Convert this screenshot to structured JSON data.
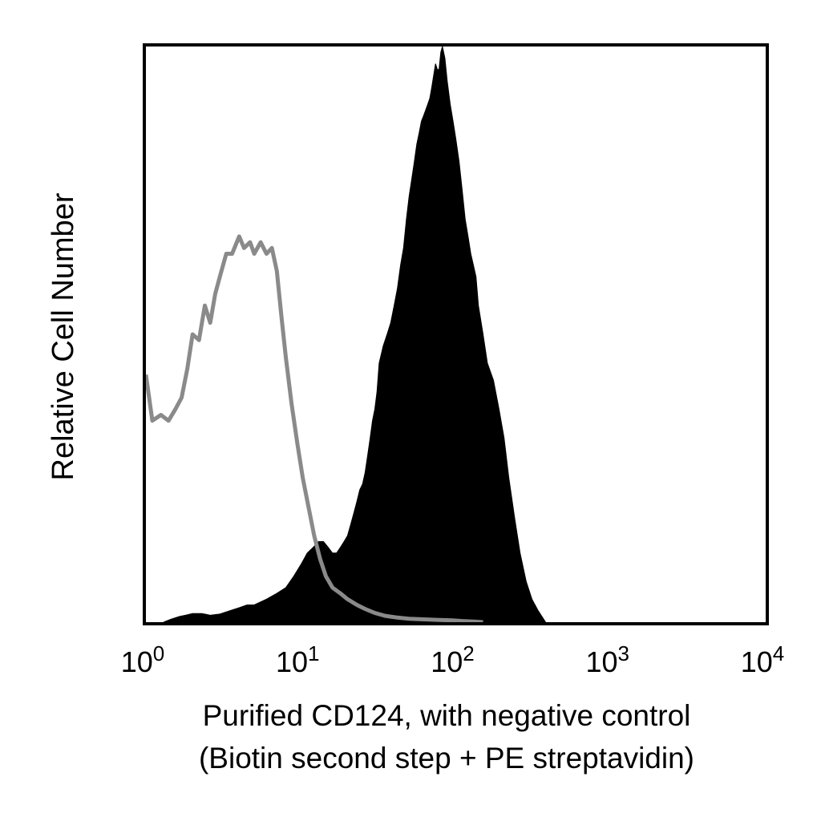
{
  "chart_data": {
    "type": "area",
    "title": "",
    "ylabel": "Relative Cell Number",
    "xlabel_lines": [
      "Purified CD124, with negative control",
      "(Biotin second step + PE streptavidin)"
    ],
    "x_scale": "log",
    "xlim": [
      1,
      10000
    ],
    "ylim": [
      0,
      100
    ],
    "x_ticks": [
      {
        "base": "10",
        "exp": "0",
        "value": 1
      },
      {
        "base": "10",
        "exp": "1",
        "value": 10
      },
      {
        "base": "10",
        "exp": "2",
        "value": 100
      },
      {
        "base": "10",
        "exp": "3",
        "value": 1000
      },
      {
        "base": "10",
        "exp": "4",
        "value": 10000
      }
    ],
    "grid": false,
    "legend": "none",
    "series": [
      {
        "style": "open-outline",
        "color": "#8a8a8a",
        "x": [
          1.0,
          1.1,
          1.25,
          1.4,
          1.55,
          1.7,
          1.85,
          2.0,
          2.2,
          2.4,
          2.6,
          2.8,
          3.0,
          3.3,
          3.6,
          4.0,
          4.3,
          4.7,
          5.0,
          5.5,
          6.0,
          6.5,
          7.0,
          7.5,
          8.0,
          8.7,
          9.5,
          10.3,
          11.2,
          12.2,
          13.3,
          14.5,
          16.0,
          18.0,
          20.0,
          23.0,
          26.0,
          30.0,
          35.0,
          42.0,
          50.0,
          60.0,
          75.0,
          95.0,
          110.0,
          130.0,
          150.0
        ],
        "y": [
          43,
          35,
          36,
          35,
          37,
          39,
          44,
          50,
          49,
          55,
          52,
          57,
          60,
          64,
          64,
          67,
          65,
          66,
          64,
          66,
          64,
          65,
          61,
          53,
          46,
          38,
          31,
          25,
          20,
          15,
          11,
          8,
          6,
          5,
          4,
          3,
          2.3,
          1.6,
          1.1,
          0.8,
          0.6,
          0.5,
          0.4,
          0.3,
          0.2,
          0.1,
          0.0
        ]
      },
      {
        "style": "filled",
        "color": "#000000",
        "x": [
          1.3,
          1.45,
          1.65,
          1.8,
          2.0,
          2.3,
          2.6,
          3.0,
          3.5,
          4.0,
          4.5,
          5.0,
          6.0,
          7.0,
          8.0,
          9.0,
          10.0,
          11.0,
          12.0,
          13.0,
          14.0,
          15.0,
          16.0,
          17.0,
          18.0,
          19.0,
          20.0,
          21.0,
          22.0,
          23.0,
          24.0,
          25.0,
          26.0,
          27.0,
          28.0,
          29.0,
          30.0,
          31.0,
          32.0,
          34.0,
          36.0,
          38.0,
          40.0,
          42.0,
          44.0,
          46.0,
          48.0,
          50.0,
          52.0,
          54.0,
          56.0,
          58.0,
          60.0,
          62.0,
          64.0,
          66.0,
          68.0,
          70.0,
          72.0,
          74.0,
          76.0,
          78.0,
          80.0,
          82.0,
          85.0,
          88.0,
          92.0,
          96.0,
          100.0,
          105.0,
          110.0,
          115.0,
          120.0,
          125.0,
          130.0,
          135.0,
          140.0,
          150.0,
          160.0,
          175.0,
          190.0,
          205.0,
          220.0,
          240.0,
          260.0,
          285.0,
          310.0,
          340.0,
          380.0
        ],
        "y": [
          0,
          0.5,
          1,
          1.2,
          1.5,
          1.5,
          1.2,
          1.4,
          2,
          2.5,
          3,
          3,
          4,
          5,
          6,
          8,
          10,
          12,
          13,
          14,
          14,
          13,
          12,
          12,
          13,
          14,
          15,
          17,
          19,
          21,
          23,
          24,
          26,
          29,
          32,
          35,
          37,
          40,
          45,
          48,
          50,
          52,
          55,
          58,
          62,
          65,
          70,
          74,
          77,
          80,
          83,
          85,
          87,
          88,
          89,
          90,
          91,
          93,
          95,
          97,
          96,
          96,
          99,
          100,
          98,
          94,
          90,
          87,
          84,
          80,
          75,
          70,
          67,
          64,
          62,
          60,
          55,
          50,
          45,
          42,
          37,
          32,
          25,
          18,
          12,
          7,
          4,
          2,
          0
        ]
      }
    ]
  }
}
